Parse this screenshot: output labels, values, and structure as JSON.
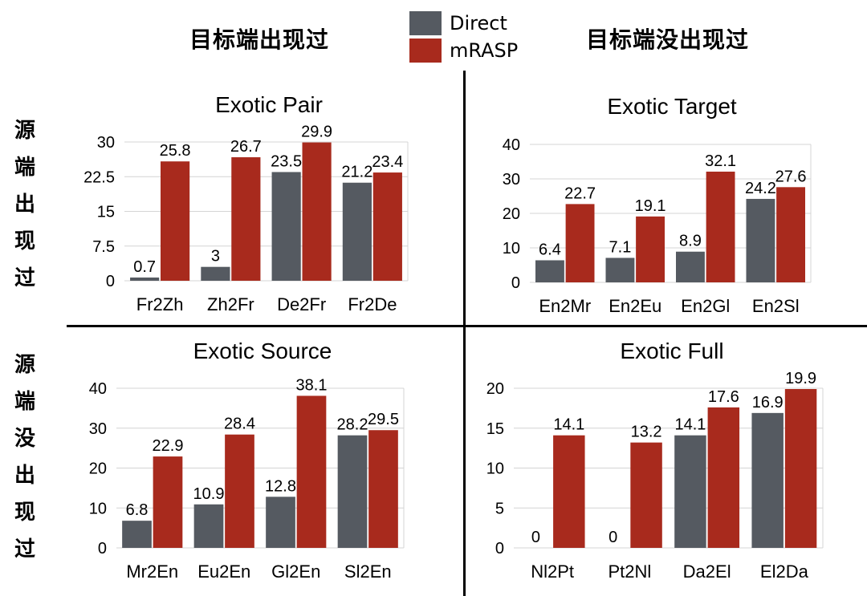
{
  "headers": {
    "col_left": "目标端出现过",
    "col_right": "目标端没出现过",
    "row_top": "源端出现过",
    "row_bottom": "源端没出现过"
  },
  "legend": [
    {
      "label": "Direct",
      "color": "#555a61"
    },
    {
      "label": "mRASP",
      "color": "#a82a1d"
    }
  ],
  "chart_data": [
    {
      "type": "bar",
      "title": "Exotic Pair",
      "categories": [
        "Fr2Zh",
        "Zh2Fr",
        "De2Fr",
        "Fr2De"
      ],
      "series": [
        {
          "name": "Direct",
          "values": [
            0.7,
            3,
            23.5,
            21.2
          ],
          "labels": [
            "0.7",
            "3",
            "23.5",
            "21.2"
          ]
        },
        {
          "name": "mRASP",
          "values": [
            25.8,
            26.7,
            29.9,
            23.4
          ],
          "labels": [
            "25.8",
            "26.7",
            "29.9",
            "23.4"
          ]
        }
      ],
      "ylim": [
        0,
        30
      ],
      "yticks": [
        "0",
        "7.5",
        "15",
        "22.5",
        "30"
      ],
      "grid": true
    },
    {
      "type": "bar",
      "title": "Exotic Target",
      "categories": [
        "En2Mr",
        "En2Eu",
        "En2Gl",
        "En2Sl"
      ],
      "series": [
        {
          "name": "Direct",
          "values": [
            6.4,
            7.1,
            8.9,
            24.2
          ],
          "labels": [
            "6.4",
            "7.1",
            "8.9",
            "24.2"
          ]
        },
        {
          "name": "mRASP",
          "values": [
            22.7,
            19.1,
            32.1,
            27.6
          ],
          "labels": [
            "22.7",
            "19.1",
            "32.1",
            "27.6"
          ]
        }
      ],
      "ylim": [
        0,
        40
      ],
      "yticks": [
        "0",
        "10",
        "20",
        "30",
        "40"
      ],
      "grid": true
    },
    {
      "type": "bar",
      "title": "Exotic Source",
      "categories": [
        "Mr2En",
        "Eu2En",
        "Gl2En",
        "Sl2En"
      ],
      "series": [
        {
          "name": "Direct",
          "values": [
            6.8,
            10.9,
            12.8,
            28.2
          ],
          "labels": [
            "6.8",
            "10.9",
            "12.8",
            "28.2"
          ]
        },
        {
          "name": "mRASP",
          "values": [
            22.9,
            28.4,
            38.1,
            29.5
          ],
          "labels": [
            "22.9",
            "28.4",
            "38.1",
            "29.5"
          ]
        }
      ],
      "ylim": [
        0,
        40
      ],
      "yticks": [
        "0",
        "10",
        "20",
        "30",
        "40"
      ],
      "grid": true
    },
    {
      "type": "bar",
      "title": "Exotic Full",
      "categories": [
        "Nl2Pt",
        "Pt2Nl",
        "Da2El",
        "El2Da"
      ],
      "series": [
        {
          "name": "Direct",
          "values": [
            0,
            0,
            14.1,
            16.9
          ],
          "labels": [
            "0",
            "0",
            "14.1",
            "16.9"
          ]
        },
        {
          "name": "mRASP",
          "values": [
            14.1,
            13.2,
            17.6,
            19.9
          ],
          "labels": [
            "14.1",
            "13.2",
            "17.6",
            "19.9"
          ]
        }
      ],
      "ylim": [
        0,
        20
      ],
      "yticks": [
        "0",
        "5",
        "10",
        "15",
        "20"
      ],
      "grid": true
    }
  ]
}
